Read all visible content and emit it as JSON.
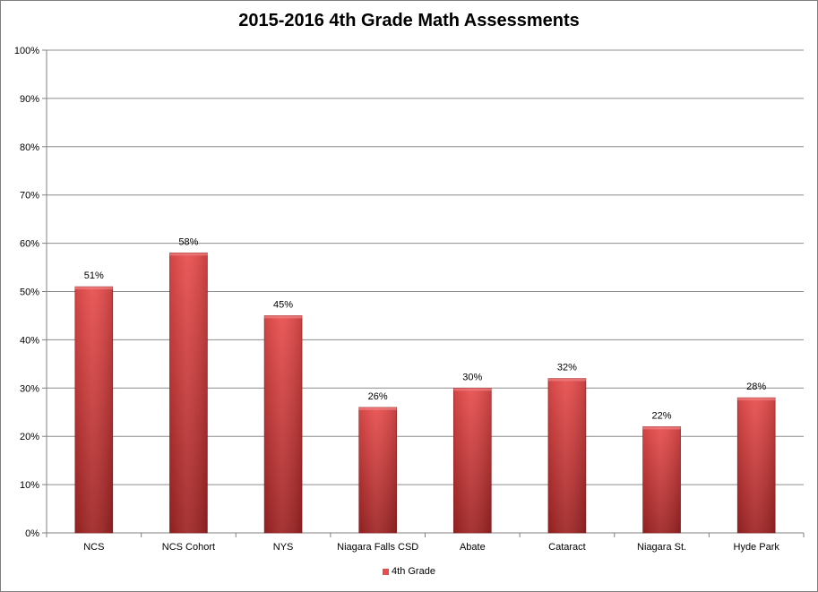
{
  "chart_data": {
    "type": "bar",
    "title": "2015-2016 4th Grade Math Assessments",
    "categories": [
      "NCS",
      "NCS Cohort",
      "NYS",
      "Niagara Falls CSD",
      "Abate",
      "Cataract",
      "Niagara St.",
      "Hyde Park"
    ],
    "series": [
      {
        "name": "4th Grade",
        "values": [
          51,
          58,
          45,
          26,
          30,
          32,
          22,
          28
        ],
        "data_labels": [
          "51%",
          "58%",
          "45%",
          "26%",
          "30%",
          "32%",
          "22%",
          "28%"
        ]
      }
    ],
    "ylim": [
      0,
      100
    ],
    "y_ticks": [
      0,
      10,
      20,
      30,
      40,
      50,
      60,
      70,
      80,
      90,
      100
    ],
    "y_tick_labels": [
      "0%",
      "10%",
      "20%",
      "30%",
      "40%",
      "50%",
      "60%",
      "70%",
      "80%",
      "90%",
      "100%"
    ],
    "grid": true,
    "legend_position": "bottom",
    "colors": {
      "bar_light": "#e84c4c",
      "bar_dark": "#9e2323",
      "grid": "#8c8c8c",
      "axis": "#808080"
    }
  }
}
